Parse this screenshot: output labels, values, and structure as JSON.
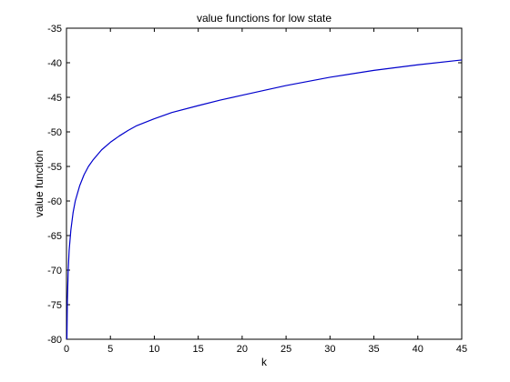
{
  "chart_data": {
    "type": "line",
    "title": "value functions for low state",
    "xlabel": "k",
    "ylabel": "value function",
    "xlim": [
      0,
      45
    ],
    "ylim": [
      -80,
      -35
    ],
    "xticks": [
      0,
      5,
      10,
      15,
      20,
      25,
      30,
      35,
      40,
      45
    ],
    "yticks": [
      -35,
      -40,
      -45,
      -50,
      -55,
      -60,
      -65,
      -70,
      -75,
      -80
    ],
    "xtick_labels": [
      "0",
      "5",
      "10",
      "15",
      "20",
      "25",
      "30",
      "35",
      "40",
      "45"
    ],
    "ytick_labels": [
      "-35",
      "-40",
      "-45",
      "-50",
      "-55",
      "-60",
      "-65",
      "-70",
      "-75",
      "-80"
    ],
    "grid": false,
    "series": [
      {
        "color": "#0000cc",
        "x": [
          0.05,
          0.1,
          0.2,
          0.3,
          0.5,
          0.75,
          1,
          1.5,
          2,
          2.5,
          3,
          4,
          5,
          6,
          7,
          8,
          10,
          12,
          15,
          17.5,
          20,
          25,
          30,
          35,
          40,
          45
        ],
        "y": [
          -80,
          -74.5,
          -70,
          -67.2,
          -64.2,
          -61.7,
          -60,
          -57.8,
          -56.2,
          -55,
          -54.1,
          -52.6,
          -51.5,
          -50.6,
          -49.8,
          -49.1,
          -48.1,
          -47.2,
          -46.2,
          -45.4,
          -44.7,
          -43.3,
          -42.1,
          -41.1,
          -40.3,
          -39.6
        ]
      }
    ]
  }
}
